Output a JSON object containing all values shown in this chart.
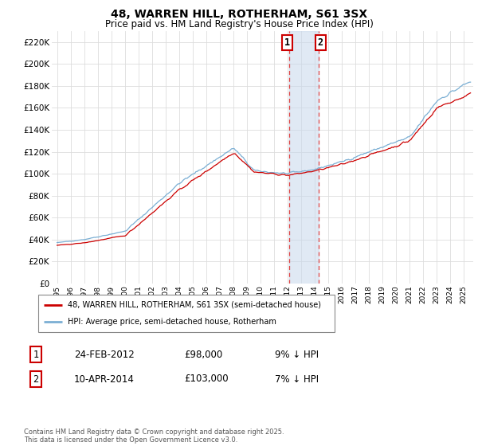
{
  "title": "48, WARREN HILL, ROTHERHAM, S61 3SX",
  "subtitle": "Price paid vs. HM Land Registry's House Price Index (HPI)",
  "ylabel_vals": [
    0,
    20000,
    40000,
    60000,
    80000,
    100000,
    120000,
    140000,
    160000,
    180000,
    200000,
    220000
  ],
  "ylim": [
    0,
    230000
  ],
  "xlim_start": 1994.6,
  "xlim_end": 2025.7,
  "hpi_color": "#7bafd4",
  "price_color": "#cc0000",
  "background_color": "#ffffff",
  "grid_color": "#dddddd",
  "sale1_x": 2012.14,
  "sale2_x": 2014.27,
  "legend1": "48, WARREN HILL, ROTHERHAM, S61 3SX (semi-detached house)",
  "legend2": "HPI: Average price, semi-detached house, Rotherham",
  "table_row1_num": "1",
  "table_row1_date": "24-FEB-2012",
  "table_row1_price": "£98,000",
  "table_row1_hpi": "9% ↓ HPI",
  "table_row2_num": "2",
  "table_row2_date": "10-APR-2014",
  "table_row2_price": "£103,000",
  "table_row2_hpi": "7% ↓ HPI",
  "footnote": "Contains HM Land Registry data © Crown copyright and database right 2025.\nThis data is licensed under the Open Government Licence v3.0.",
  "xtick_years": [
    1995,
    1996,
    1997,
    1998,
    1999,
    2000,
    2001,
    2002,
    2003,
    2004,
    2005,
    2006,
    2007,
    2008,
    2009,
    2010,
    2011,
    2012,
    2013,
    2014,
    2015,
    2016,
    2017,
    2018,
    2019,
    2020,
    2021,
    2022,
    2023,
    2024,
    2025
  ]
}
